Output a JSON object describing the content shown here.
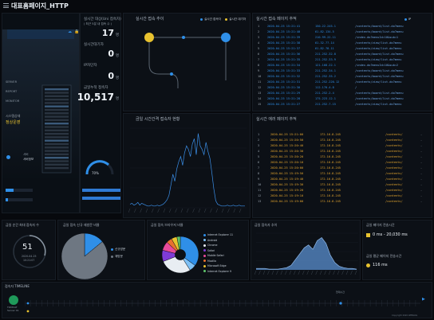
{
  "header": {
    "title": "대표홈페이지_HTTP"
  },
  "left": {
    "server_labels": [
      "SERVER",
      "REPORT",
      "MONITOR"
    ],
    "status_label": "시스템상태",
    "status_value": "정상운영",
    "device_label": "서버",
    "device_value": "서버정보",
    "gauge_label": "CPU",
    "gauge_value": "70%"
  },
  "stats": {
    "realtime_users_label": "실시간 대상(Uni 접속자)",
    "realtime_users_sub": "( 최근 5분 내 접속 수 )",
    "realtime_users_value": "17",
    "realtime_users_unit": "명",
    "waiting_label": "실시간대기자",
    "waiting_value": "0",
    "waiting_unit": "명",
    "blocked_label": "IP차단자",
    "blocked_value": "0",
    "blocked_unit": "명",
    "today_label": "금일누적 접속자",
    "today_value": "10,517",
    "today_unit": "명"
  },
  "flow": {
    "title": "실시간 접속 추이",
    "legend": [
      {
        "label": "실시간 접속자",
        "color": "#2f8fe8"
      },
      {
        "label": "실시간 대기자",
        "color": "#e8c22f"
      }
    ]
  },
  "realtime_pages": {
    "title": "실시간 접속 페이지 추적",
    "legend": [
      {
        "label": "실시간 접속자",
        "color": "#2f8fe8"
      },
      {
        "label": "IP",
        "color": "#e8c22f"
      }
    ],
    "rows": [
      [
        "1",
        "2020-04-25 15:21:41",
        "150.22.245.1",
        "/contents/board/list.do?menu"
      ],
      [
        "2",
        "2020-04-25 15:21:40",
        "61.82.134.5",
        "/contents/board/list.do?menu"
      ],
      [
        "3",
        "2020-04-25 15:21:39",
        "210.99.22.11",
        "/index.do?menuId=10&sub=1"
      ],
      [
        "4",
        "2020-04-25 15:21:38",
        "61.32.77.14",
        "/contents/view/list.do?menu"
      ],
      [
        "5",
        "2020-04-25 15:21:37",
        "61.82.78.11",
        "/contents/view/list.do?menu"
      ],
      [
        "6",
        "2020-04-25 15:21:36",
        "211.252.32.8",
        "/contents/board/list.do?menu"
      ],
      [
        "7",
        "2020-04-25 15:21:35",
        "211.252.33.9",
        "/contents/view/list.do?menu"
      ],
      [
        "8",
        "2020-04-25 15:21:34",
        "121.168.22.1",
        "/index.do?menuId=10&sub=2"
      ],
      [
        "9",
        "2020-04-25 15:21:33",
        "211.252.34.1",
        "/contents/board/list.do?menu"
      ],
      [
        "10",
        "2020-04-25 15:21:32",
        "211.252.35.2",
        "/contents/board/list.do?menu"
      ],
      [
        "11",
        "2020-04-25 15:21:31",
        "211.252.220.12",
        "/contents/view/list.do?menu"
      ],
      [
        "12",
        "2020-04-25 15:21:30",
        "112.170.4.8",
        "/"
      ],
      [
        "13",
        "2020-04-25 15:21:29",
        "211.252.2.4",
        "/contents/board/list.do?menu"
      ],
      [
        "14",
        "2020-04-25 15:21:28",
        "175.223.12.1",
        "/contents/board/list.do?menu"
      ],
      [
        "15",
        "2020-04-25 15:21:27",
        "211.252.7.15",
        "/contents/view/list.do?menu"
      ]
    ]
  },
  "chart_center": {
    "title": "금일 시간간격 접속자 현황"
  },
  "error_pages": {
    "title": "실시간 에러 페이지 추적",
    "rows": [
      [
        "1",
        "2020-04-25 15:21:00",
        "172.16.8.245",
        "/contents/",
        "-"
      ],
      [
        "2",
        "2020-04-25 15:20:50",
        "172.16.8.245",
        "/contents/",
        "-"
      ],
      [
        "3",
        "2020-04-25 15:20:40",
        "172.16.8.245",
        "/contents/",
        "-"
      ],
      [
        "4",
        "2020-04-25 15:20:30",
        "172.16.8.245",
        "/contents/",
        "-"
      ],
      [
        "5",
        "2020-04-25 15:20:20",
        "172.16.8.245",
        "/contents/",
        "-"
      ],
      [
        "6",
        "2020-04-25 15:20:10",
        "172.16.8.245",
        "/contents/",
        "-"
      ],
      [
        "7",
        "2020-04-25 15:20:00",
        "172.16.8.245",
        "/contents/",
        "-"
      ],
      [
        "8",
        "2020-04-25 15:19:50",
        "172.16.8.245",
        "/contents/",
        "-"
      ],
      [
        "9",
        "2020-04-25 15:19:40",
        "172.16.8.245",
        "/contents/",
        "-"
      ],
      [
        "10",
        "2020-04-25 15:19:30",
        "172.16.8.245",
        "/contents/",
        "-"
      ],
      [
        "11",
        "2020-04-25 15:19:20",
        "172.16.8.245",
        "/contents/",
        "-"
      ],
      [
        "12",
        "2020-04-25 15:19:10",
        "172.16.8.245",
        "/contents/",
        "-"
      ],
      [
        "13",
        "2020-04-25 15:19:00",
        "172.16.8.245",
        "/contents/",
        "-"
      ]
    ]
  },
  "max_users": {
    "title": "금일 순간 최대 접속자 수",
    "value": "51",
    "date": "2020-04-25",
    "time": "10:21:07"
  },
  "new_vs_return": {
    "title": "금일 접속 신규 재방문 비율",
    "legend": [
      {
        "label": "신규방문",
        "color": "#2f8fe8"
      },
      {
        "label": "재방문",
        "color": "#6e7782"
      }
    ],
    "values": [
      14,
      86
    ]
  },
  "browser": {
    "title": "금일 접속 브라우저 비율",
    "items": [
      {
        "label": "Internet Explorer 11",
        "color": "#2f8fe8",
        "value": 35
      },
      {
        "label": "Android",
        "color": "#7fc1f5",
        "value": 6
      },
      {
        "label": "Chrome",
        "color": "#e8edf2",
        "value": 28
      },
      {
        "label": "Safari",
        "color": "#7e3bd6",
        "value": 10
      },
      {
        "label": "Mobile Safari",
        "color": "#e84a9a",
        "value": 8
      },
      {
        "label": "Mozilla",
        "color": "#e8702f",
        "value": 5
      },
      {
        "label": "Microsoft Edge",
        "color": "#e8c22f",
        "value": 5
      },
      {
        "label": "Internet Explorer 9",
        "color": "#5ec46a",
        "value": 3
      }
    ]
  },
  "trend": {
    "title": "금일 접속자 추이"
  },
  "page_time": {
    "title": "금일 페이지 전송시간",
    "range": "0 ms - 20,030 ms",
    "avg_title": "금일 평균 페이지 전송시간",
    "avg_value": "116 ms"
  },
  "timeline": {
    "title": "접속자 TIMELINE",
    "server_label": "TOMCAT",
    "server_sub": "Server 01",
    "tick_label": "현재시간",
    "footer": "Copyright 2020 WEBLOG"
  },
  "chart_data": [
    {
      "type": "area",
      "title": "금일 시간간격 접속자 현황",
      "x": [
        0,
        1,
        2,
        3,
        4,
        5,
        6,
        7,
        8,
        9,
        10,
        11,
        12,
        13,
        14,
        15,
        16,
        17,
        18,
        19,
        20,
        21,
        22,
        23,
        24,
        25,
        26,
        27,
        28,
        29,
        30,
        31,
        32,
        33,
        34,
        35,
        36,
        37,
        38,
        39,
        40,
        41,
        42,
        43,
        44,
        45,
        46,
        47,
        48,
        49,
        50,
        51,
        52,
        53,
        54,
        55,
        56,
        57,
        58,
        59
      ],
      "values": [
        4,
        5,
        3,
        4,
        6,
        3,
        5,
        4,
        3,
        2,
        2,
        3,
        2,
        2,
        3,
        2,
        3,
        4,
        6,
        9,
        14,
        26,
        38,
        30,
        44,
        52,
        58,
        48,
        62,
        70,
        66,
        58,
        72,
        78,
        60,
        84,
        70,
        66,
        60,
        74,
        64,
        56,
        40,
        22,
        8,
        4,
        3,
        2,
        2,
        2,
        3,
        2,
        2,
        3,
        2,
        2,
        3,
        2,
        2,
        2
      ],
      "ylim": [
        0,
        90
      ]
    },
    {
      "type": "area",
      "title": "금일 접속자 추이",
      "x": [
        0,
        1,
        2,
        3,
        4,
        5,
        6,
        7,
        8,
        9,
        10,
        11,
        12,
        13,
        14,
        15,
        16,
        17,
        18,
        19,
        20,
        21,
        22,
        23
      ],
      "values": [
        2,
        2,
        2,
        1,
        1,
        1,
        2,
        3,
        6,
        14,
        22,
        30,
        34,
        28,
        40,
        44,
        36,
        20,
        10,
        5,
        3,
        2,
        2,
        1
      ],
      "ylim": [
        0,
        50
      ]
    },
    {
      "type": "pie",
      "title": "금일 접속 신규 재방문 비율",
      "categories": [
        "신규방문",
        "재방문"
      ],
      "values": [
        14,
        86
      ]
    },
    {
      "type": "pie",
      "title": "금일 접속 브라우저 비율",
      "categories": [
        "Internet Explorer 11",
        "Android",
        "Chrome",
        "Safari",
        "Mobile Safari",
        "Mozilla",
        "Microsoft Edge",
        "Internet Explorer 9"
      ],
      "values": [
        35,
        6,
        28,
        10,
        8,
        5,
        5,
        3
      ]
    }
  ]
}
